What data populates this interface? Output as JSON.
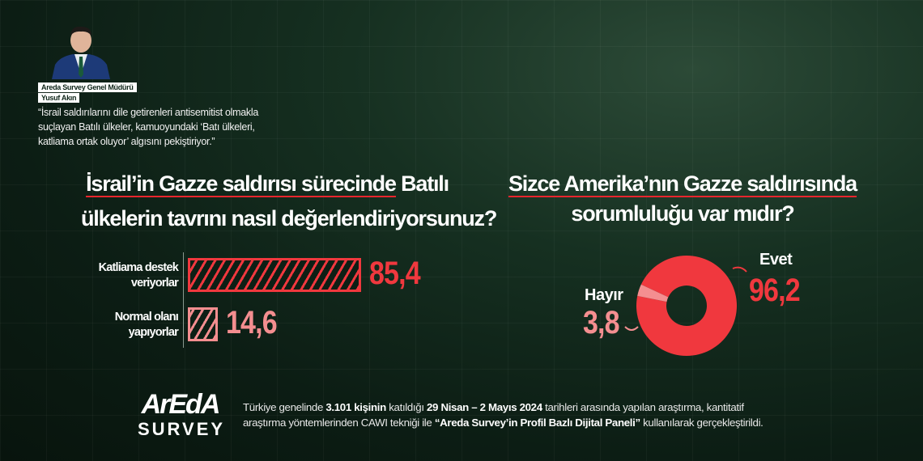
{
  "header": {
    "person_role": "Areda Survey Genel Müdürü",
    "person_name": "Yusuf Akın",
    "quote": "“İsrail saldırılarını dile getirenleri antisemitist olmakla suçlayan Batılı ülkeler, kamuoyundaki ‘Batı ülkeleri, katliama ortak oluyor’ algısını pekiştiriyor.”"
  },
  "colors": {
    "primary_red": "#f0383e",
    "light_red": "#f48e90",
    "background": "#0f2519"
  },
  "chart_data": [
    {
      "type": "bar",
      "orientation": "horizontal",
      "title_line1_underlined": "İsrail’in Gazze saldırısı sürecinde",
      "title_line1_rest": "Batılı",
      "title_line2": "ülkelerin tavrını nasıl değerlendiriyorsunuz?",
      "categories": [
        "Katliama destek veriyorlar",
        "Normal olanı yapıyorlar"
      ],
      "category_lines": [
        [
          "Katliama destek",
          "veriyorlar"
        ],
        [
          "Normal olanı",
          "yapıyorlar"
        ]
      ],
      "values": [
        85.4,
        14.6
      ],
      "value_labels": [
        "85,4",
        "14,6"
      ],
      "colors": [
        "#f0383e",
        "#f48e90"
      ],
      "pattern": "diagonal-hatch"
    },
    {
      "type": "pie",
      "style": "donut",
      "title_line1_underlined": "Sizce Amerika’nın Gazze saldırısında",
      "title_line2": "sorumluluğu var mıdır?",
      "categories": [
        "Evet",
        "Hayır"
      ],
      "values": [
        96.2,
        3.8
      ],
      "value_labels": [
        "96,2",
        "3,8"
      ],
      "colors": [
        "#f0383e",
        "#f48e90"
      ]
    }
  ],
  "footer": {
    "logo_text": "ArEdA",
    "logo_sub": "SURVEY",
    "t1": "Türkiye genelinde ",
    "b1": "3.101 kişinin",
    "t2": " katıldığı ",
    "b2": "29 Nisan – 2 Mayıs 2024",
    "t3": " tarihleri arasında yapılan araştırma, kantitatif",
    "t4": "araştırma yöntemlerinden CAWI tekniği ile ",
    "b3": "“Areda Survey’in Profil Bazlı Dijital Paneli”",
    "t5": " kullanılarak gerçekleştirildi."
  }
}
